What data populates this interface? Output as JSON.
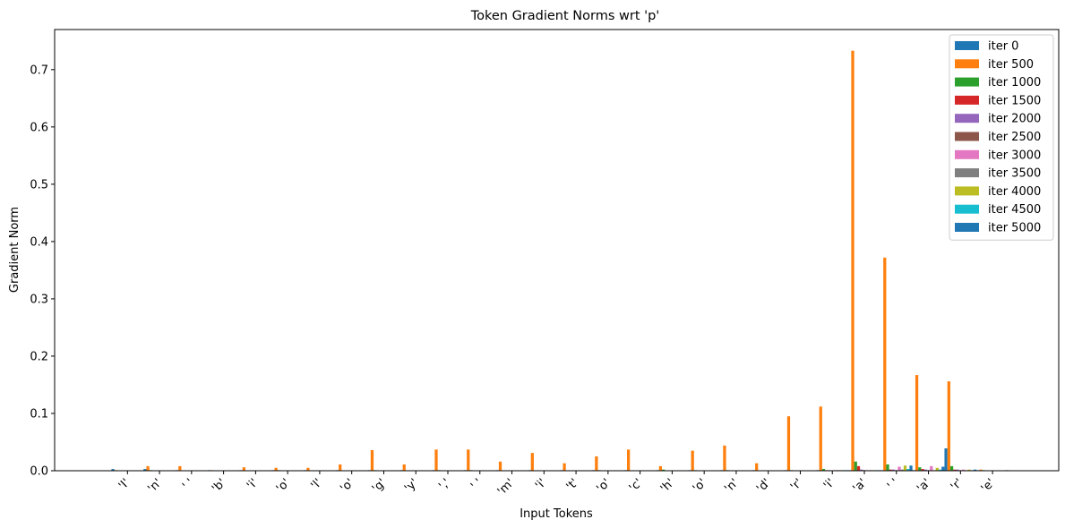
{
  "chart_data": {
    "type": "bar",
    "title": "Token Gradient Norms wrt 'p'",
    "xlabel": "Input Tokens",
    "ylabel": "Gradient Norm",
    "ylim": [
      0,
      0.77
    ],
    "yticks": [
      0.0,
      0.1,
      0.2,
      0.3,
      0.4,
      0.5,
      0.6,
      0.7
    ],
    "ytick_labels": [
      "0.0",
      "0.1",
      "0.2",
      "0.3",
      "0.4",
      "0.5",
      "0.6",
      "0.7"
    ],
    "legend_position": "top-right",
    "grid": false,
    "categories": [
      "'I'",
      "'n'",
      "' '",
      "'b'",
      "'i'",
      "'o'",
      "'l'",
      "'o'",
      "'g'",
      "'y'",
      "','",
      "' '",
      "'m'",
      "'i'",
      "'t'",
      "'o'",
      "'c'",
      "'h'",
      "'o'",
      "'n'",
      "'d'",
      "'r'",
      "'i'",
      "'a'",
      "' '",
      "'a'",
      "'r'",
      "'e'"
    ],
    "series": [
      {
        "name": "iter 0",
        "color": "#1f77b4",
        "values": [
          0.003,
          0.003,
          0.001,
          0.001,
          0.001,
          0.001,
          0.001,
          0.001,
          0.001,
          0.001,
          0.001,
          0.001,
          0.001,
          0.001,
          0.001,
          0.001,
          0.001,
          0.001,
          0.001,
          0.001,
          0.001,
          0.001,
          0.001,
          0.001,
          0.001,
          0.001,
          0.039,
          0.001
        ]
      },
      {
        "name": "iter 500",
        "color": "#ff7f0e",
        "values": [
          0.001,
          0.008,
          0.008,
          0.001,
          0.006,
          0.005,
          0.005,
          0.011,
          0.036,
          0.011,
          0.037,
          0.037,
          0.016,
          0.031,
          0.013,
          0.025,
          0.037,
          0.008,
          0.035,
          0.044,
          0.013,
          0.095,
          0.112,
          0.733,
          0.372,
          0.167,
          0.156,
          0.002
        ]
      },
      {
        "name": "iter 1000",
        "color": "#2ca02c",
        "values": [
          0.0,
          0.001,
          0.0,
          0.0,
          0.0,
          0.001,
          0.0,
          0.0,
          0.001,
          0.0,
          0.001,
          0.001,
          0.0,
          0.0,
          0.0,
          0.001,
          0.0,
          0.002,
          0.001,
          0.001,
          0.0,
          0.001,
          0.003,
          0.016,
          0.011,
          0.006,
          0.008,
          0.001
        ]
      },
      {
        "name": "iter 1500",
        "color": "#d62728",
        "values": [
          0.0,
          0.0,
          0.0,
          0.0,
          0.0,
          0.0,
          0.0,
          0.0,
          0.0,
          0.0,
          0.0,
          0.0,
          0.0,
          0.0,
          0.0,
          0.0,
          0.0,
          0.0,
          0.0,
          0.0,
          0.0,
          0.0,
          0.001,
          0.008,
          0.002,
          0.003,
          0.002,
          0.0
        ]
      },
      {
        "name": "iter 2000",
        "color": "#9467bd",
        "values": [
          0.0,
          0.0,
          0.0,
          0.0,
          0.0,
          0.0,
          0.0,
          0.0,
          0.0,
          0.0,
          0.0,
          0.0,
          0.0,
          0.0,
          0.0,
          0.0,
          0.0,
          0.0,
          0.0,
          0.0,
          0.0,
          0.0,
          0.001,
          0.002,
          0.002,
          0.002,
          0.002,
          0.0
        ]
      },
      {
        "name": "iter 2500",
        "color": "#8c564b",
        "values": [
          0.0,
          0.0,
          0.0,
          0.0,
          0.0,
          0.0,
          0.0,
          0.0,
          0.0,
          0.0,
          0.0,
          0.0,
          0.0,
          0.0,
          0.0,
          0.0,
          0.0,
          0.0,
          0.0,
          0.0,
          0.0,
          0.0,
          0.0,
          0.001,
          0.001,
          0.001,
          0.001,
          0.0
        ]
      },
      {
        "name": "iter 3000",
        "color": "#e377c2",
        "values": [
          0.0,
          0.0,
          0.0,
          0.0,
          0.0,
          0.0,
          0.0,
          0.0,
          0.0,
          0.0,
          0.0,
          0.0,
          0.0,
          0.0,
          0.0,
          0.0,
          0.0,
          0.0,
          0.0,
          0.0,
          0.0,
          0.0,
          0.001,
          0.001,
          0.007,
          0.008,
          0.002,
          0.0
        ]
      },
      {
        "name": "iter 3500",
        "color": "#7f7f7f",
        "values": [
          0.0,
          0.0,
          0.0,
          0.0,
          0.0,
          0.0,
          0.0,
          0.0,
          0.0,
          0.0,
          0.0,
          0.0,
          0.0,
          0.0,
          0.0,
          0.0,
          0.0,
          0.0,
          0.0,
          0.0,
          0.0,
          0.0,
          0.001,
          0.001,
          0.002,
          0.001,
          0.001,
          0.0
        ]
      },
      {
        "name": "iter 4000",
        "color": "#bcbd22",
        "values": [
          0.0,
          0.0,
          0.0,
          0.0,
          0.0,
          0.0,
          0.0,
          0.0,
          0.0,
          0.0,
          0.0,
          0.0,
          0.0,
          0.0,
          0.0,
          0.0,
          0.0,
          0.0,
          0.0,
          0.0,
          0.0,
          0.0,
          0.001,
          0.001,
          0.009,
          0.005,
          0.002,
          0.0
        ]
      },
      {
        "name": "iter 4500",
        "color": "#17becf",
        "values": [
          0.0,
          0.0,
          0.0,
          0.0,
          0.0,
          0.0,
          0.0,
          0.0,
          0.0,
          0.0,
          0.0,
          0.0,
          0.0,
          0.0,
          0.0,
          0.0,
          0.0,
          0.0,
          0.0,
          0.0,
          0.0,
          0.0,
          0.001,
          0.001,
          0.003,
          0.002,
          0.001,
          0.0
        ]
      },
      {
        "name": "iter 5000",
        "color": "#1f77b4",
        "values": [
          0.0,
          0.0,
          0.0,
          0.0,
          0.0,
          0.0,
          0.0,
          0.0,
          0.0,
          0.0,
          0.0,
          0.0,
          0.0,
          0.0,
          0.0,
          0.0,
          0.0,
          0.0,
          0.0,
          0.0,
          0.0,
          0.0,
          0.001,
          0.001,
          0.009,
          0.007,
          0.002,
          0.001
        ]
      }
    ]
  }
}
